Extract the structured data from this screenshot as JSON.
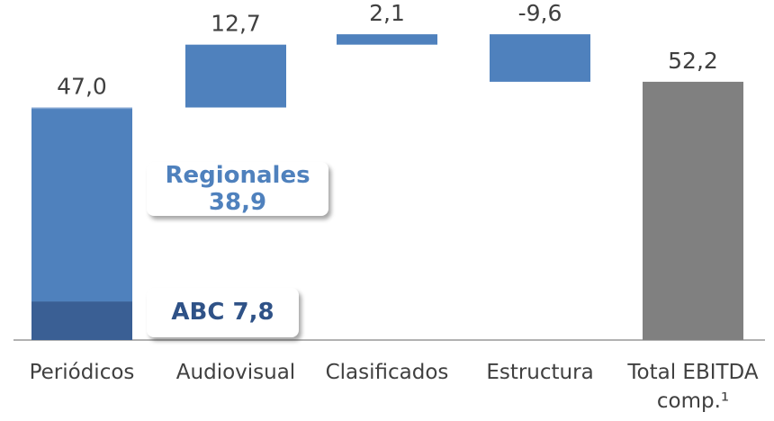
{
  "chart_data": {
    "type": "waterfall",
    "categories": [
      "Periódicos",
      "Audiovisual",
      "Clasificados",
      "Estructura",
      "Total EBITDA comp.¹"
    ],
    "values": [
      47.0,
      12.7,
      2.1,
      -9.6,
      52.2
    ],
    "value_labels": [
      "47,0",
      "12,7",
      "2,1",
      "-9,6",
      "52,2"
    ],
    "color": "#4f81bd",
    "total_color": "#808080",
    "first_color": "#7fa3d0",
    "breakdown": [
      {
        "name": "ABC",
        "value": 7.8,
        "value_label": "7,8",
        "color": "#3a5f94"
      },
      {
        "name": "Regionales",
        "value": 38.9,
        "value_label": "38,9",
        "color": "#4f81bd"
      }
    ],
    "ylim": [
      0,
      68
    ]
  }
}
